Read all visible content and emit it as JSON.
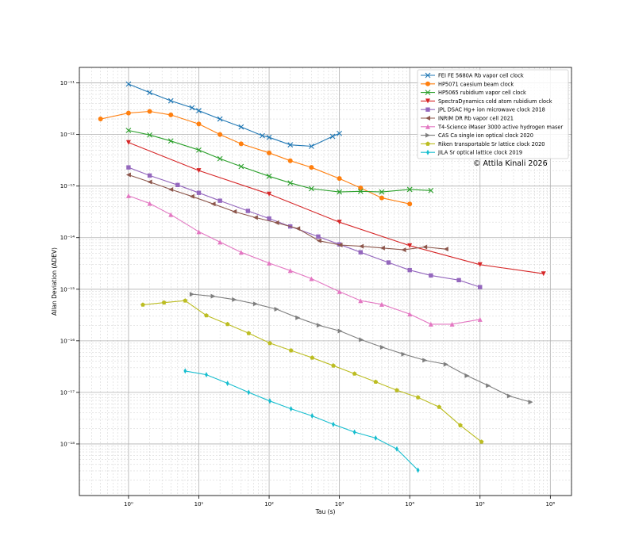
{
  "chart_data": {
    "type": "line",
    "title": "",
    "xlabel": "Tau (s)",
    "ylabel": "Allan Deviation (ADEV)",
    "xscale": "log",
    "yscale": "log",
    "xlim": [
      0.2,
      2000000
    ],
    "ylim": [
      1e-19,
      2e-11
    ],
    "x_ticks": [
      {
        "value": 1,
        "label": "10⁰"
      },
      {
        "value": 10,
        "label": "10¹"
      },
      {
        "value": 100,
        "label": "10²"
      },
      {
        "value": 1000,
        "label": "10³"
      },
      {
        "value": 10000,
        "label": "10⁴"
      },
      {
        "value": 100000,
        "label": "10⁵"
      },
      {
        "value": 1000000,
        "label": "10⁶"
      }
    ],
    "y_ticks": [
      {
        "value": 1e-18,
        "label": "10⁻¹⁸"
      },
      {
        "value": 1e-17,
        "label": "10⁻¹⁷"
      },
      {
        "value": 1e-16,
        "label": "10⁻¹⁶"
      },
      {
        "value": 1e-15,
        "label": "10⁻¹⁵"
      },
      {
        "value": 1e-14,
        "label": "10⁻¹⁴"
      },
      {
        "value": 1e-13,
        "label": "10⁻¹³"
      },
      {
        "value": 1e-12,
        "label": "10⁻¹²"
      },
      {
        "value": 1e-11,
        "label": "10⁻¹¹"
      }
    ],
    "grid": "major and minor",
    "legend_position": "top-right",
    "annotation": "© Attila Kinali 2026",
    "series": [
      {
        "name": "FEI FE 5680A Rb vapor cell clock",
        "color": "#1f77b4",
        "marker": "x",
        "x": [
          1,
          2,
          4,
          8,
          10,
          20,
          40,
          80,
          100,
          200,
          400,
          800,
          1000
        ],
        "y": [
          9.5e-12,
          6.5e-12,
          4.5e-12,
          3.3e-12,
          2.9e-12,
          2e-12,
          1.4e-12,
          9.5e-13,
          8.8e-13,
          6.3e-13,
          5.9e-13,
          9.2e-13,
          1.05e-12
        ]
      },
      {
        "name": "HP5071 caesium beam clock",
        "color": "#ff7f0e",
        "marker": "o",
        "x": [
          0.4,
          1,
          2,
          4,
          10,
          20,
          40,
          100,
          200,
          400,
          1000,
          2000,
          4000,
          10000
        ],
        "y": [
          2e-12,
          2.6e-12,
          2.8e-12,
          2.4e-12,
          1.6e-12,
          1e-12,
          6.6e-13,
          4.4e-13,
          3.1e-13,
          2.3e-13,
          1.4e-13,
          9.2e-14,
          5.9e-14,
          4.5e-14
        ]
      },
      {
        "name": "HP5065 rubidium vapor cell clock",
        "color": "#2ca02c",
        "marker": "x",
        "x": [
          1,
          2,
          4,
          10,
          20,
          40,
          100,
          200,
          400,
          1000,
          2000,
          4000,
          10000,
          20000
        ],
        "y": [
          1.2e-12,
          9.8e-13,
          7.5e-13,
          5e-13,
          3.4e-13,
          2.4e-13,
          1.55e-13,
          1.15e-13,
          8.9e-14,
          7.7e-14,
          7.9e-14,
          7.7e-14,
          8.6e-14,
          8.2e-14
        ]
      },
      {
        "name": "SpectraDynamics cold atom rubidium clock",
        "color": "#d62728",
        "marker": "v",
        "x": [
          1,
          10,
          100,
          1000,
          10000,
          100000,
          800000
        ],
        "y": [
          7e-13,
          2e-13,
          7e-14,
          2e-14,
          7e-15,
          3e-15,
          2e-15
        ]
      },
      {
        "name": "JPL DSAC Hg+ ion microwave clock 2018",
        "color": "#9467bd",
        "marker": "s",
        "x": [
          1,
          2,
          5,
          10,
          20,
          50,
          100,
          200,
          500,
          1000,
          2000,
          5000,
          10000,
          20000,
          50000,
          100000
        ],
        "y": [
          2.3e-13,
          1.6e-13,
          1.05e-13,
          7.4e-14,
          5.2e-14,
          3.3e-14,
          2.35e-14,
          1.65e-14,
          1.05e-14,
          7.4e-15,
          5.2e-15,
          3.3e-15,
          2.35e-15,
          1.85e-15,
          1.5e-15,
          1.1e-15
        ]
      },
      {
        "name": "INRIM DR Rb vapor cell 2021",
        "color": "#8c564b",
        "marker": "<",
        "x": [
          1,
          2,
          4,
          8,
          16,
          32,
          64,
          128,
          256,
          512,
          1024,
          2048,
          4096,
          8192,
          16384,
          32768
        ],
        "y": [
          1.65e-13,
          1.2e-13,
          8.6e-14,
          6.3e-14,
          4.5e-14,
          3.2e-14,
          2.45e-14,
          1.95e-14,
          1.5e-14,
          8.7e-15,
          7.2e-15,
          6.8e-15,
          6.3e-15,
          5.8e-15,
          6.6e-15,
          6e-15
        ]
      },
      {
        "name": "T4-Science iMaser 3000 active hydrogen maser",
        "color": "#e377c2",
        "marker": "^",
        "x": [
          1,
          2,
          4,
          10,
          20,
          40,
          100,
          200,
          400,
          1000,
          2000,
          4000,
          10000,
          20000,
          40000,
          100000
        ],
        "y": [
          6.5e-14,
          4.6e-14,
          2.8e-14,
          1.3e-14,
          8.2e-15,
          5.2e-15,
          3.2e-15,
          2.3e-15,
          1.6e-15,
          9e-16,
          6e-16,
          5.1e-16,
          3.3e-16,
          2.1e-16,
          2.1e-16,
          2.6e-16
        ]
      },
      {
        "name": "CAS Ca single ion optical clock 2020",
        "color": "#7f7f7f",
        "marker": ">",
        "x": [
          8,
          16,
          32,
          64,
          128,
          256,
          512,
          1024,
          2048,
          4096,
          8192,
          16384,
          32768,
          65536,
          131072,
          262144,
          524288
        ],
        "y": [
          8e-16,
          7.3e-16,
          6.3e-16,
          5.2e-16,
          4.1e-16,
          2.8e-16,
          2e-16,
          1.55e-16,
          1.05e-16,
          7.5e-17,
          5.5e-17,
          4.2e-17,
          3.5e-17,
          2.1e-17,
          1.35e-17,
          8.5e-18,
          6.5e-18
        ]
      },
      {
        "name": "Riken transportable Sr lattice clock 2020",
        "color": "#bcbd22",
        "marker": "p",
        "x": [
          1.6,
          3.2,
          6.4,
          12.8,
          25.6,
          51.2,
          102.4,
          204.8,
          409.6,
          819.2,
          1638.4,
          3276.8,
          6553.6,
          13107.2,
          26214.4,
          52428.8,
          104857.6
        ],
        "y": [
          5e-16,
          5.5e-16,
          6e-16,
          3.1e-16,
          2.1e-16,
          1.4e-16,
          9e-17,
          6.5e-17,
          4.7e-17,
          3.3e-17,
          2.3e-17,
          1.6e-17,
          1.1e-17,
          8e-18,
          5.2e-18,
          2.3e-18,
          1.1e-18
        ]
      },
      {
        "name": "JILA Sr optical lattice clock 2019",
        "color": "#17becf",
        "marker": "d",
        "x": [
          6.4,
          12.8,
          25.6,
          51.2,
          102.4,
          204.8,
          409.6,
          819.2,
          1638.4,
          3276.8,
          6553.6,
          13107.2
        ],
        "y": [
          2.6e-17,
          2.2e-17,
          1.5e-17,
          1e-17,
          6.8e-18,
          4.8e-18,
          3.5e-18,
          2.4e-18,
          1.7e-18,
          1.3e-18,
          8e-19,
          3.1e-19
        ]
      }
    ]
  }
}
